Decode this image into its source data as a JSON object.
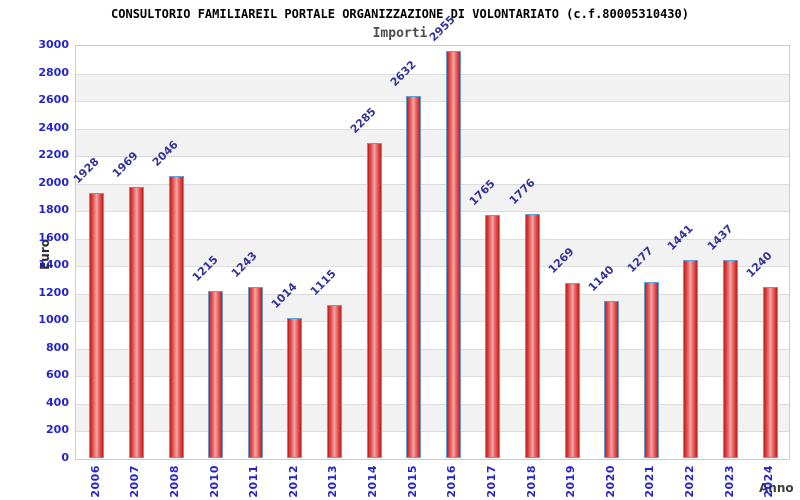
{
  "chart_data": {
    "type": "bar",
    "title": "CONSULTORIO FAMILIAREIL PORTALE ORGANIZZAZIONE DI VOLONTARIATO (c.f.80005310430)",
    "subtitle": "Importi",
    "xlabel": "Anno",
    "ylabel": "Euro",
    "categories": [
      "2006",
      "2007",
      "2008",
      "2010",
      "2011",
      "2012",
      "2013",
      "2014",
      "2015",
      "2016",
      "2017",
      "2018",
      "2019",
      "2020",
      "2021",
      "2022",
      "2023",
      "2024"
    ],
    "values": [
      1928,
      1969,
      2046,
      1215,
      1243,
      1014,
      1115,
      2285,
      2632,
      2955,
      1765,
      1776,
      1269,
      1140,
      1277,
      1441,
      1437,
      1240
    ],
    "ylim": [
      0,
      3000
    ],
    "ytick_step": 200,
    "grid": true,
    "legend": false,
    "colors": {
      "bar_fill_edge": "#c21d1d",
      "bar_fill_center": "#f3a9a9",
      "bar_border": "#5f9fd8",
      "axis_tick_text": "#2424cf",
      "value_label_text": "#333399",
      "band_fill": "#f2f2f2",
      "gridline": "#dcdcdc",
      "title_text": "#000000",
      "subtitle_text": "#4d4d4d"
    }
  }
}
